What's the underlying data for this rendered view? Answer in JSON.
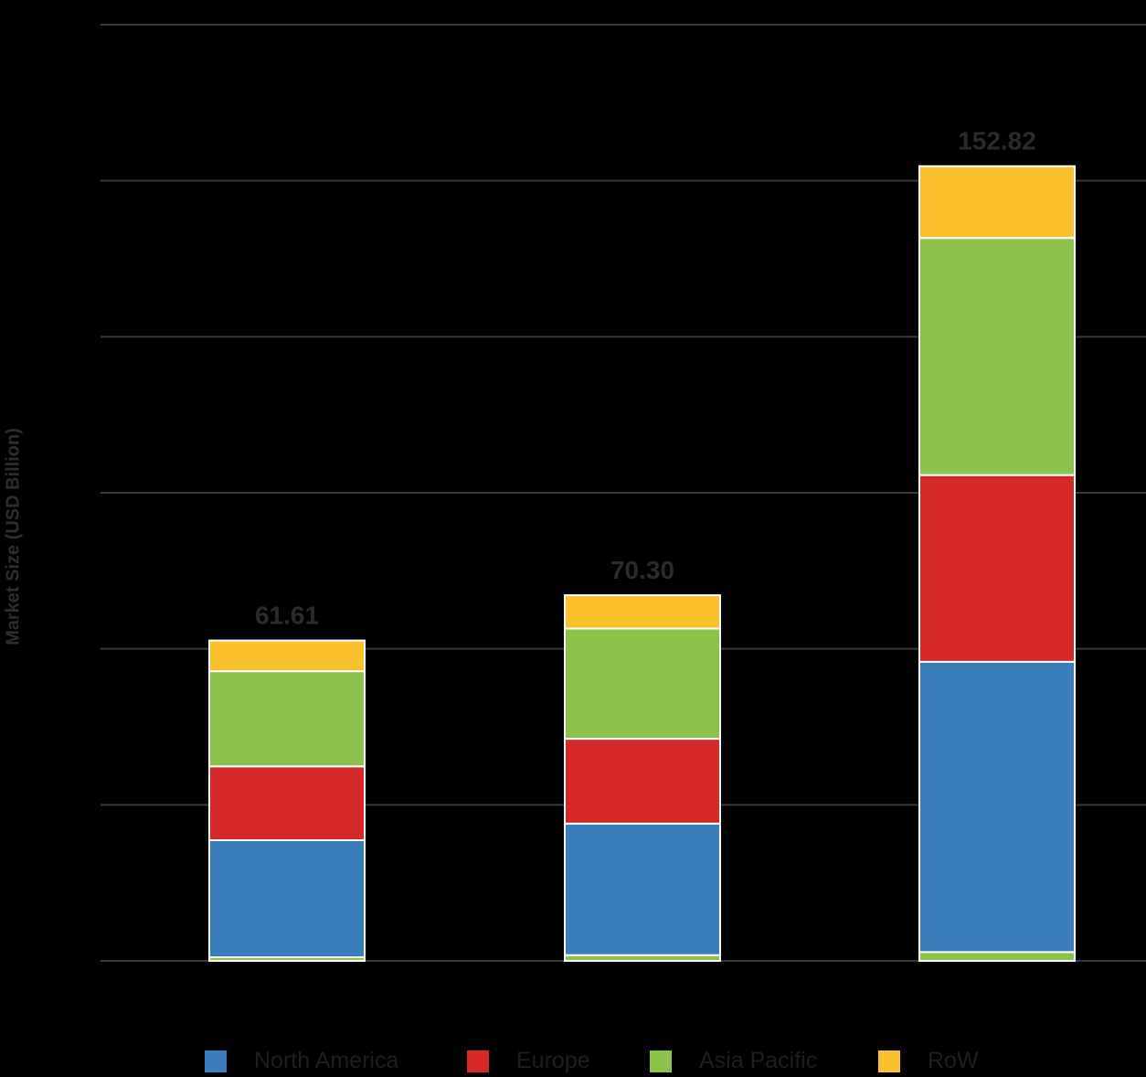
{
  "chart_data": {
    "type": "bar",
    "stacked": true,
    "title": "",
    "xlabel": "",
    "ylabel": "Market Size (USD Billion)",
    "ylim": [
      0,
      180
    ],
    "grid_step": 30,
    "grid": true,
    "categories": [
      "",
      "",
      ""
    ],
    "totals": [
      "61.61",
      "70.30",
      "152.82"
    ],
    "series": [
      {
        "name": "Asia Pacific (base)",
        "color": "#8bc34a",
        "legend": false,
        "values": [
          0.7,
          1.1,
          1.7
        ]
      },
      {
        "name": "North America",
        "color": "#3a7dbb",
        "legend": true,
        "values": [
          22.5,
          25.3,
          55.8
        ]
      },
      {
        "name": "Europe",
        "color": "#d52828",
        "legend": true,
        "values": [
          14.2,
          16.3,
          35.9
        ]
      },
      {
        "name": "Asia Pacific",
        "color": "#8bc34a",
        "legend": true,
        "values": [
          18.3,
          21.2,
          45.6
        ]
      },
      {
        "name": "RoW",
        "color": "#fbc02d",
        "legend": true,
        "values": [
          5.9,
          6.4,
          13.8
        ]
      }
    ],
    "legend_position": "bottom"
  }
}
